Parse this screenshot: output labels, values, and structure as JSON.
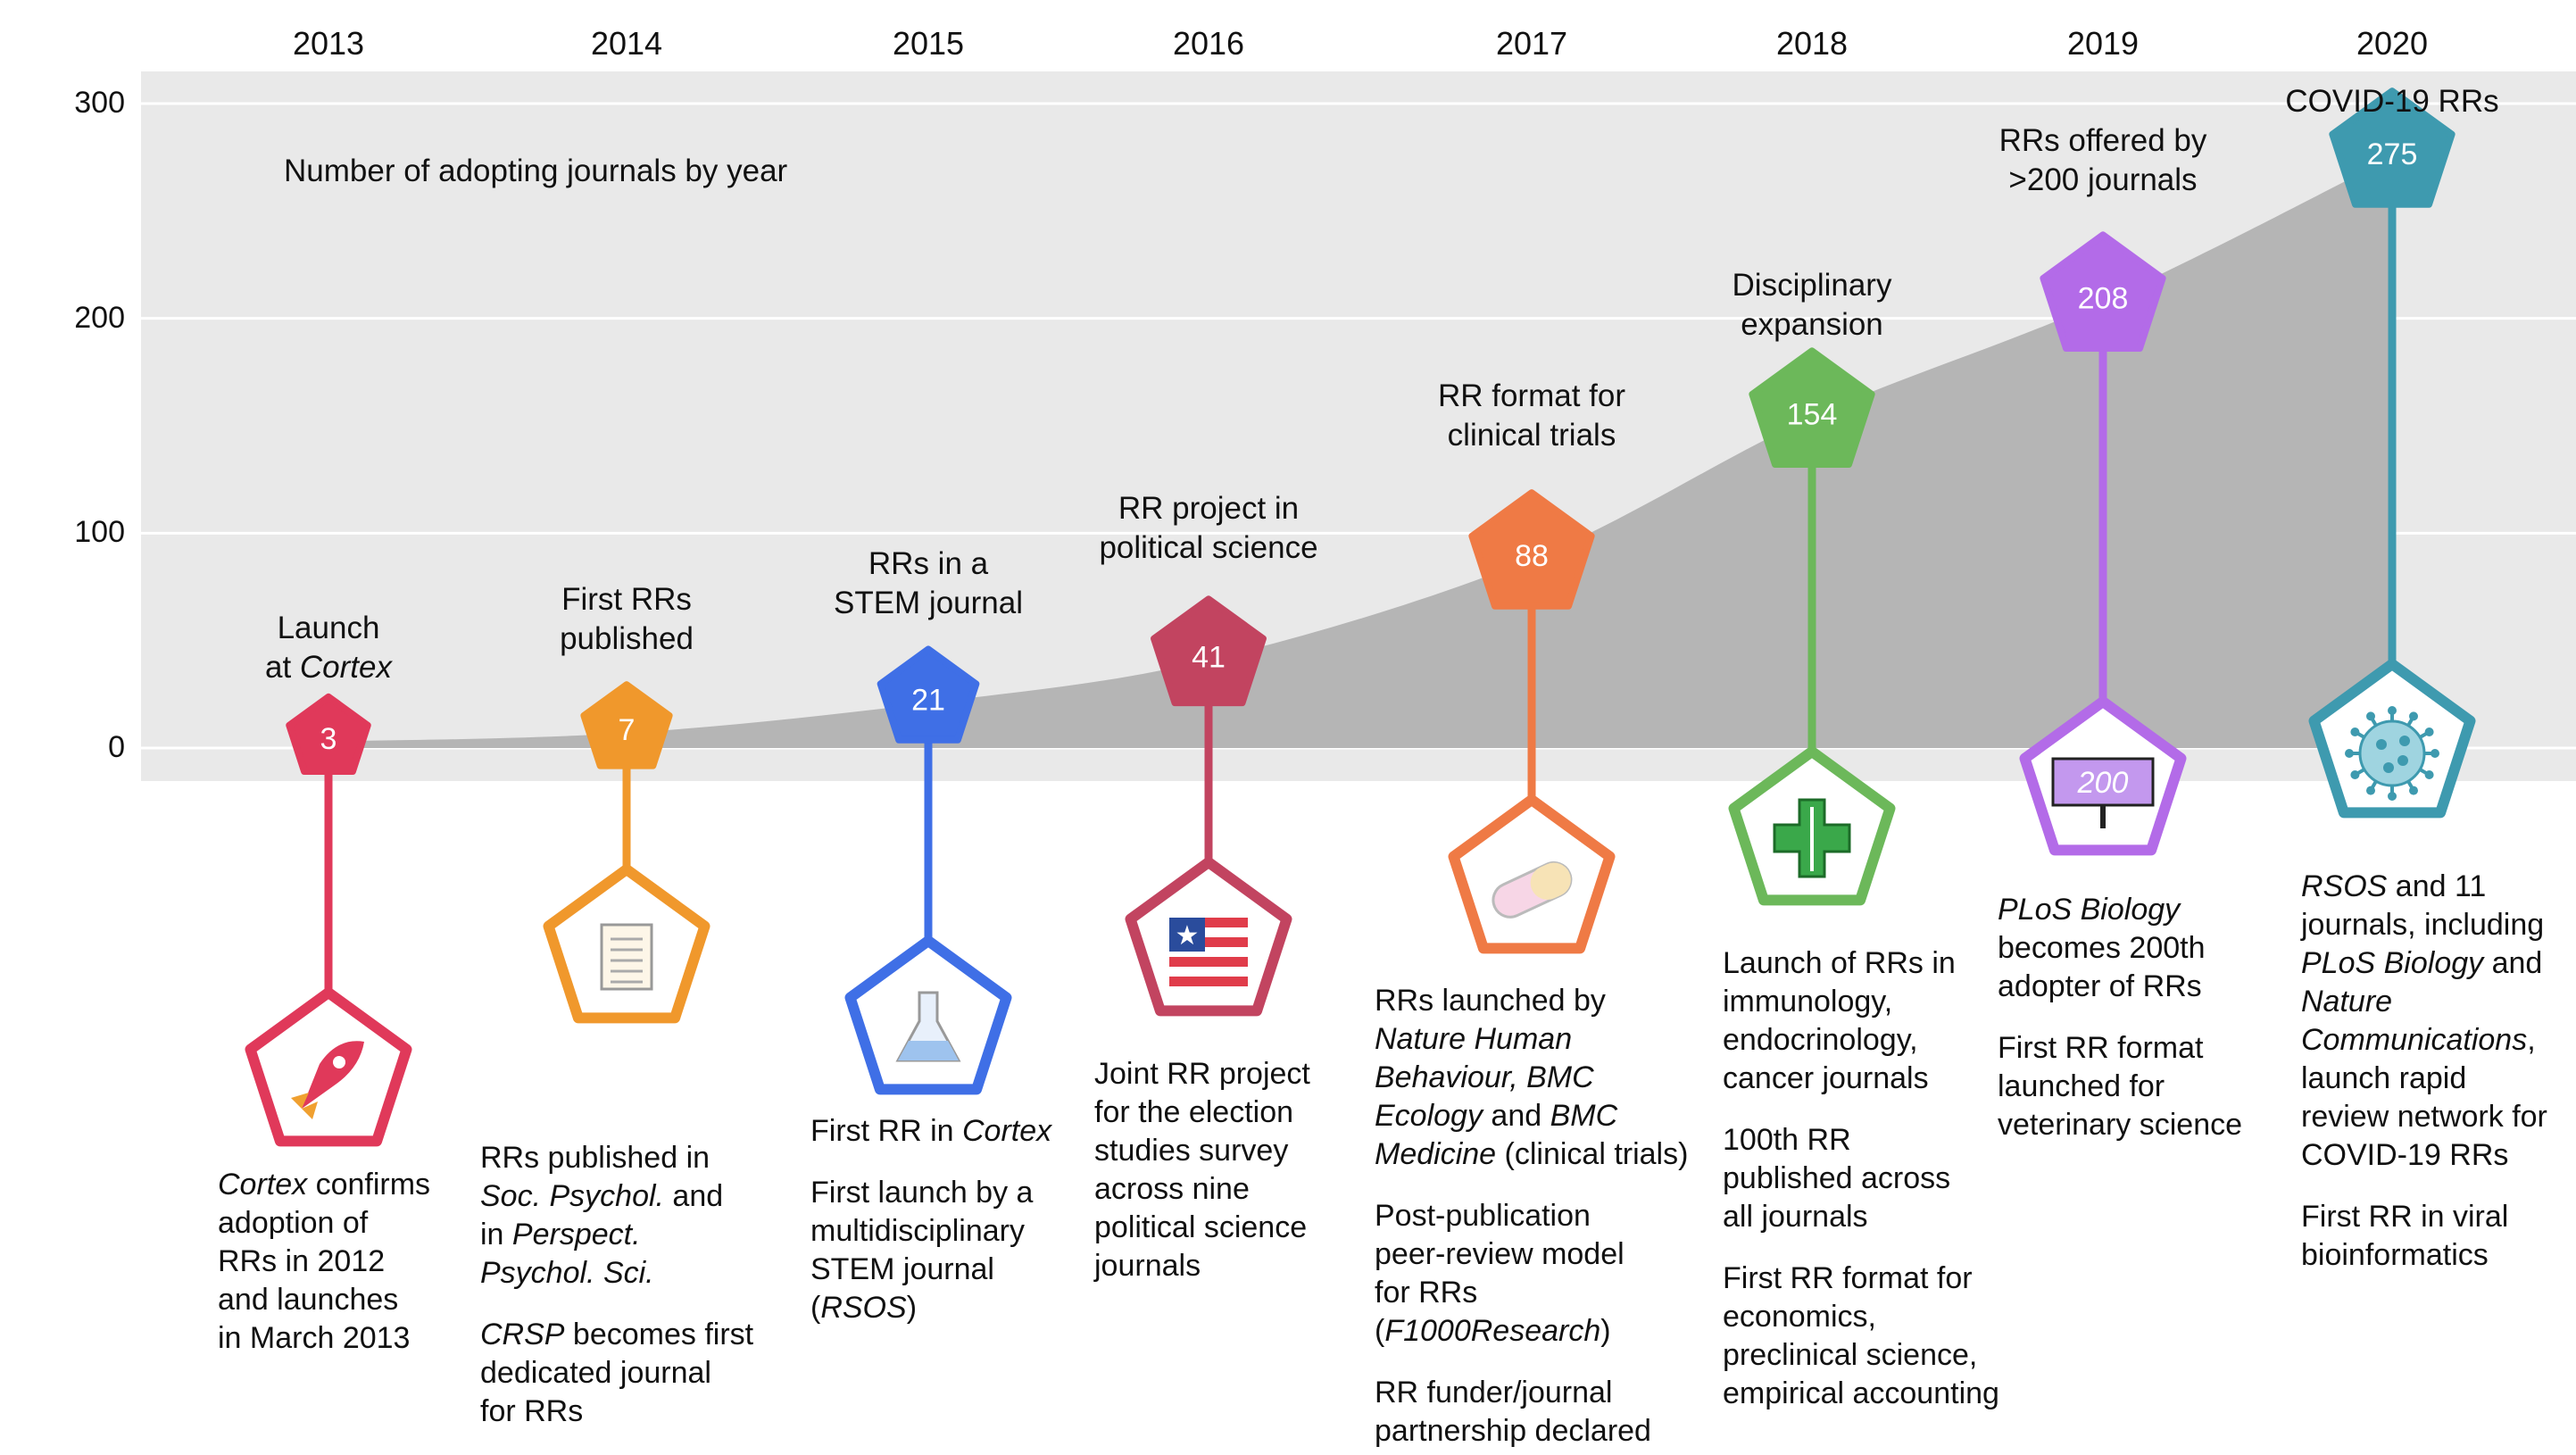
{
  "chart_data": {
    "type": "area",
    "subtitle": "Number of adopting journals by year",
    "x": [
      "2013",
      "2014",
      "2015",
      "2016",
      "2017",
      "2018",
      "2019",
      "2020"
    ],
    "series": [
      {
        "values": [
          3,
          7,
          21,
          41,
          88,
          154,
          208,
          275
        ]
      }
    ],
    "ylim": [
      0,
      300
    ],
    "yticks": [
      "0",
      "100",
      "200",
      "300"
    ],
    "grid": true,
    "markers": [
      {
        "year": "2013",
        "value": "3",
        "color": "#e0395a",
        "icon": "rocket-icon",
        "caption_lines": [
          [
            "Launch"
          ],
          [
            "at ",
            {
              "i": "Cortex"
            }
          ]
        ],
        "desc": [
          [
            [
              {
                "i": "Cortex"
              },
              " confirms"
            ],
            [
              "adoption of"
            ],
            [
              "RRs in 2012"
            ],
            [
              "and launches"
            ],
            [
              "in March 2013"
            ]
          ]
        ]
      },
      {
        "year": "2014",
        "value": "7",
        "color": "#f0982c",
        "icon": "document-icon",
        "caption_lines": [
          [
            "First RRs"
          ],
          [
            "published"
          ]
        ],
        "desc": [
          [
            [
              "RRs published in"
            ],
            [
              {
                "i": "Soc. Psychol."
              },
              " and"
            ],
            [
              "in ",
              {
                "i": "Perspect."
              }
            ],
            [
              {
                "i": "Psychol. Sci."
              }
            ]
          ],
          [
            [
              {
                "i": "CRSP"
              },
              " becomes first"
            ],
            [
              "dedicated journal"
            ],
            [
              "for RRs"
            ]
          ]
        ]
      },
      {
        "year": "2015",
        "value": "21",
        "color": "#3f6fe6",
        "icon": "flask-icon",
        "caption_lines": [
          [
            "RRs in a"
          ],
          [
            "STEM journal"
          ]
        ],
        "desc": [
          [
            [
              "First RR in ",
              {
                "i": "Cortex"
              }
            ]
          ],
          [
            [
              "First launch by a"
            ],
            [
              "multidisciplinary"
            ],
            [
              "STEM journal"
            ],
            [
              "(",
              {
                "i": "RSOS"
              },
              ")"
            ]
          ]
        ]
      },
      {
        "year": "2016",
        "value": "41",
        "color": "#c24460",
        "icon": "flag-icon",
        "caption_lines": [
          [
            "RR project in"
          ],
          [
            "political science"
          ]
        ],
        "desc": [
          [
            [
              "Joint RR project"
            ],
            [
              "for the election"
            ],
            [
              "studies survey"
            ],
            [
              "across nine"
            ],
            [
              "political science"
            ],
            [
              "journals"
            ]
          ]
        ]
      },
      {
        "year": "2017",
        "value": "88",
        "color": "#ef7a45",
        "icon": "pill-icon",
        "caption_lines": [
          [
            "RR format for"
          ],
          [
            "clinical trials"
          ]
        ],
        "desc": [
          [
            [
              "RRs launched by"
            ],
            [
              {
                "i": "Nature Human"
              }
            ],
            [
              {
                "i": "Behaviour, BMC"
              }
            ],
            [
              {
                "i": "Ecology"
              },
              " and ",
              {
                "i": "BMC"
              }
            ],
            [
              {
                "i": "Medicine"
              },
              " (clinical trials)"
            ]
          ],
          [
            [
              "Post-publication"
            ],
            [
              "peer-review model"
            ],
            [
              "for RRs"
            ],
            [
              "(",
              {
                "i": "F1000Research"
              },
              ")"
            ]
          ],
          [
            [
              "RR funder/journal"
            ],
            [
              "partnership declared"
            ]
          ]
        ]
      },
      {
        "year": "2018",
        "value": "154",
        "color": "#6cb85a",
        "icon": "medical-cross-icon",
        "caption_lines": [
          [
            "Disciplinary"
          ],
          [
            "expansion"
          ]
        ],
        "desc": [
          [
            [
              "Launch of RRs in"
            ],
            [
              "immunology,"
            ],
            [
              "endocrinology,"
            ],
            [
              "cancer journals"
            ]
          ],
          [
            [
              "100th RR"
            ],
            [
              "published across"
            ],
            [
              "all journals"
            ]
          ],
          [
            [
              "First RR format for"
            ],
            [
              "economics,"
            ],
            [
              "preclinical science,"
            ],
            [
              "empirical accounting"
            ]
          ]
        ]
      },
      {
        "year": "2019",
        "value": "208",
        "color": "#b36be8",
        "icon": "sign-icon",
        "icon_text": "200",
        "caption_lines": [
          [
            "RRs offered by"
          ],
          [
            ">200 journals"
          ]
        ],
        "desc": [
          [
            [
              {
                "i": "PLoS Biology"
              }
            ],
            [
              "becomes 200th"
            ],
            [
              "adopter of RRs"
            ]
          ],
          [
            [
              "First RR format"
            ],
            [
              "launched for"
            ],
            [
              "veterinary science"
            ]
          ]
        ]
      },
      {
        "year": "2020",
        "value": "275",
        "color": "#3e9aaf",
        "icon": "virus-icon",
        "caption_lines": [
          [
            "COVID-19 RRs"
          ]
        ],
        "desc": [
          [
            [
              {
                "i": "RSOS"
              },
              " and 11"
            ],
            [
              "journals, including"
            ],
            [
              {
                "i": "PLoS Biology"
              },
              " and"
            ],
            [
              {
                "i": "Nature"
              }
            ],
            [
              {
                "i": "Communications"
              },
              ","
            ],
            [
              "launch rapid"
            ],
            [
              "review network for"
            ],
            [
              "COVID-19 RRs"
            ]
          ],
          [
            [
              "First RR in viral"
            ],
            [
              "bioinformatics"
            ]
          ]
        ]
      }
    ]
  }
}
